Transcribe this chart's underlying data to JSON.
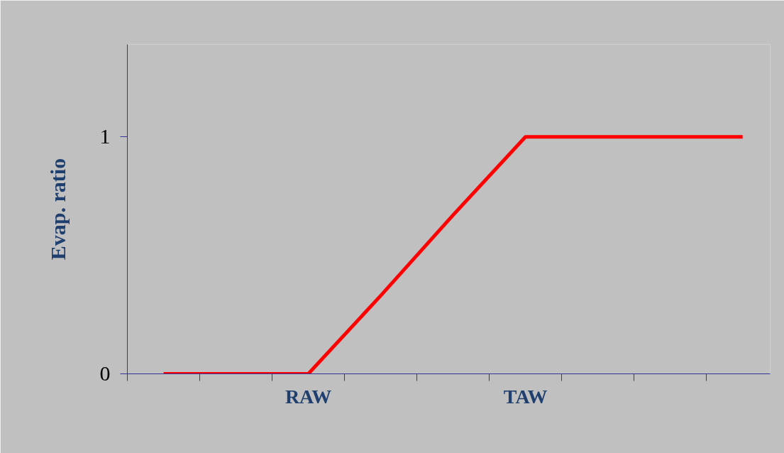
{
  "chart_data": {
    "type": "line",
    "ylabel": "Evap. ratio",
    "categories": [
      null,
      null,
      "RAW",
      null,
      null,
      "TAW",
      null,
      null,
      null
    ],
    "series": [
      {
        "color": "#ff0000",
        "values": [
          0,
          0,
          0,
          0.33,
          0.67,
          1,
          1,
          1,
          1
        ]
      }
    ],
    "ylim": [
      0,
      1.39
    ],
    "yticks": [
      0,
      1
    ],
    "grid": false,
    "marker": "none",
    "line_style": "solid"
  }
}
